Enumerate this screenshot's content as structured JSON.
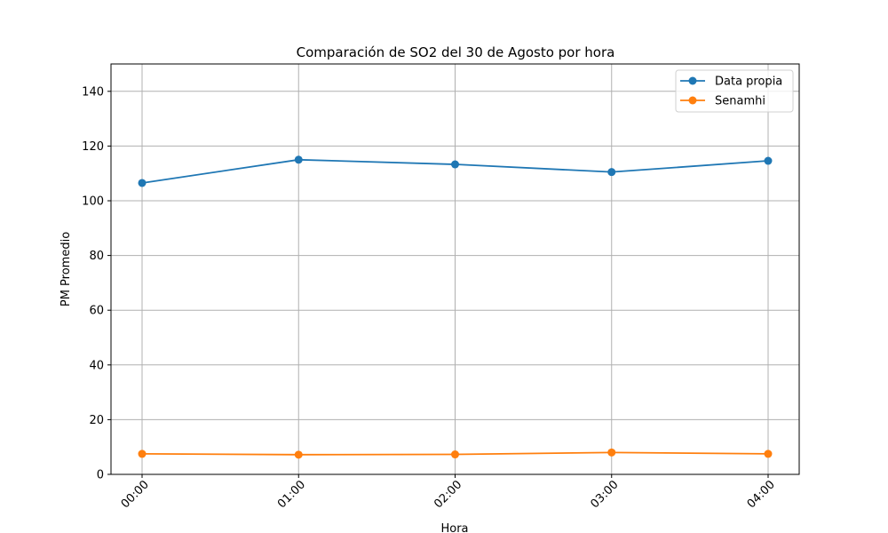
{
  "chart_data": {
    "type": "line",
    "title": "Comparación de SO2 del 30 de Agosto por hora",
    "xlabel": "Hora",
    "ylabel": "PM Promedio",
    "categories": [
      "00:00",
      "01:00",
      "02:00",
      "03:00",
      "04:00"
    ],
    "ylim": [
      0,
      150
    ],
    "yticks": [
      0,
      20,
      40,
      60,
      80,
      100,
      120,
      140
    ],
    "grid": true,
    "legend_position": "top-right",
    "series": [
      {
        "name": "Data propia",
        "color": "#1f77b4",
        "values": [
          106.5,
          115.0,
          113.3,
          110.5,
          114.6
        ]
      },
      {
        "name": "Senamhi",
        "color": "#ff7f0e",
        "values": [
          7.5,
          7.2,
          7.3,
          8.0,
          7.5
        ]
      }
    ]
  }
}
